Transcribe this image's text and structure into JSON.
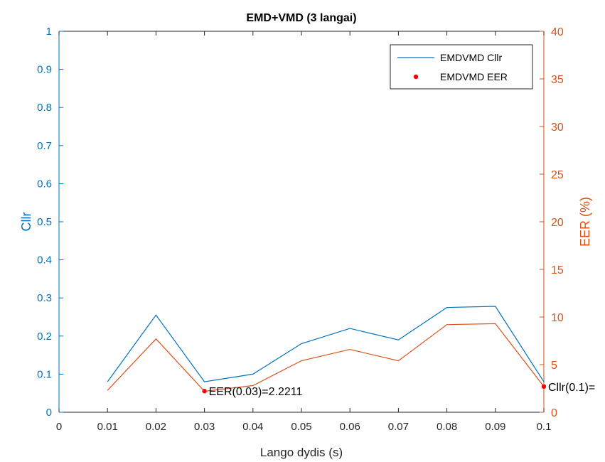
{
  "chart_data": {
    "type": "line",
    "title": "EMD+VMD (3 langai)",
    "xlabel": "Lango dydis (s)",
    "ylabel_left": "Cllr",
    "ylabel_right": "EER (%)",
    "xlim": [
      0,
      0.1
    ],
    "ylim_left": [
      0,
      1
    ],
    "ylim_right": [
      0,
      40
    ],
    "x_ticks": [
      "0",
      "0.01",
      "0.02",
      "0.03",
      "0.04",
      "0.05",
      "0.06",
      "0.07",
      "0.08",
      "0.09",
      "0.1"
    ],
    "y_ticks_left": [
      "0",
      "0.1",
      "0.2",
      "0.3",
      "0.4",
      "0.5",
      "0.6",
      "0.7",
      "0.8",
      "0.9",
      "1"
    ],
    "y_ticks_right": [
      "0",
      "5",
      "10",
      "15",
      "20",
      "25",
      "30",
      "35",
      "40"
    ],
    "x": [
      0.01,
      0.02,
      0.03,
      0.04,
      0.05,
      0.06,
      0.07,
      0.08,
      0.09,
      0.1
    ],
    "series": [
      {
        "name": "EMDVMD Cllr",
        "axis": "left",
        "color": "#0072BD",
        "values": [
          0.08,
          0.255,
          0.08,
          0.1,
          0.18,
          0.22,
          0.19,
          0.275,
          0.278,
          0.08
        ]
      },
      {
        "name": "",
        "axis": "right",
        "color": "#D95319",
        "values": [
          2.3,
          7.7,
          2.2,
          2.8,
          5.4,
          6.6,
          5.4,
          9.2,
          9.3,
          2.7
        ]
      }
    ],
    "legend": {
      "position": "top-right",
      "entries": [
        {
          "label": "EMDVMD Cllr",
          "marker": "line",
          "color": "#0072BD"
        },
        {
          "label": "EMDVMD EER",
          "marker": "dot",
          "color": "#FF0000"
        }
      ]
    },
    "points": [
      {
        "x": 0.03,
        "y": 2.2211,
        "axis": "right",
        "color": "#FF0000"
      },
      {
        "x": 0.1,
        "y": 2.7,
        "axis": "right",
        "color": "#FF0000"
      }
    ],
    "annotations": [
      {
        "x": 0.03,
        "y": 2.2211,
        "axis": "right",
        "text": "EER(0.03)=2.2211"
      },
      {
        "x": 0.1,
        "y": 2.7,
        "axis": "right",
        "text": "Cllr(0.1)="
      }
    ],
    "colors": {
      "left_axis": "#0072BD",
      "right_axis": "#D95319",
      "text": "#262626",
      "axis_x": "#262626"
    }
  }
}
